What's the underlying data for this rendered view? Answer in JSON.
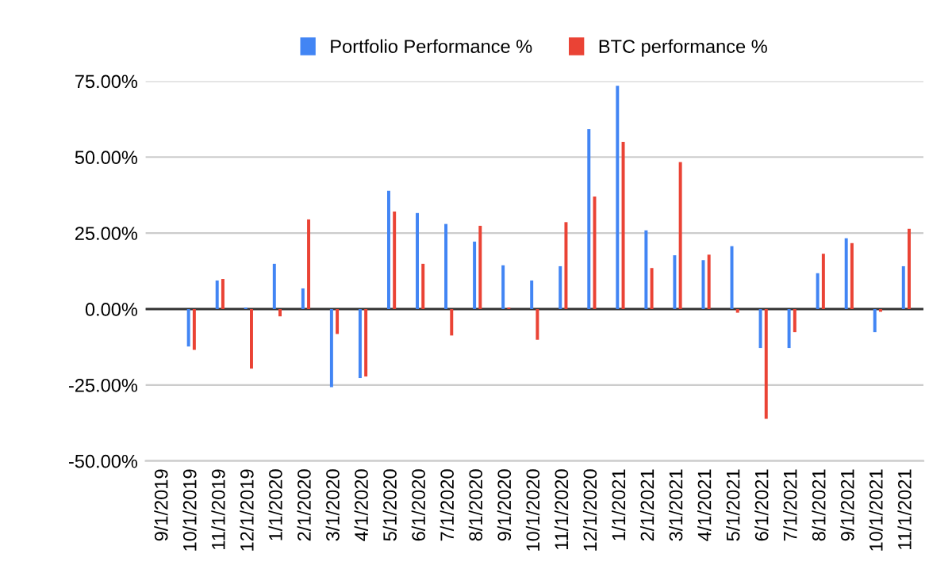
{
  "chart_data": {
    "type": "bar",
    "categories": [
      "9/1/2019",
      "10/1/2019",
      "11/1/2019",
      "12/1/2019",
      "1/1/2020",
      "2/1/2020",
      "3/1/2020",
      "4/1/2020",
      "5/1/2020",
      "6/1/2020",
      "7/1/2020",
      "8/1/2020",
      "9/1/2020",
      "10/1/2020",
      "11/1/2020",
      "12/1/2020",
      "1/1/2021",
      "2/1/2021",
      "3/1/2021",
      "4/1/2021",
      "5/1/2021",
      "6/1/2021",
      "7/1/2021",
      "8/1/2021",
      "9/1/2021",
      "10/1/2021",
      "11/1/2021"
    ],
    "series": [
      {
        "name": "Portfolio Performance %",
        "color": "#4285f4",
        "values": [
          null,
          -12.3,
          9.4,
          0.5,
          14.9,
          6.8,
          -25.7,
          -22.7,
          38.9,
          31.6,
          28.0,
          22.2,
          14.4,
          9.4,
          14.1,
          59.2,
          73.5,
          25.9,
          17.7,
          16.1,
          20.7,
          -12.8,
          -12.8,
          11.8,
          23.3,
          -7.6,
          14.1
        ]
      },
      {
        "name": "BTC performance %",
        "color": "#ea4335",
        "values": [
          null,
          -13.4,
          9.9,
          -19.6,
          -2.4,
          29.5,
          -8.2,
          -22.2,
          32.1,
          14.9,
          -8.7,
          27.4,
          0.5,
          -10.1,
          28.6,
          37.0,
          55.0,
          13.5,
          48.4,
          17.9,
          -1.2,
          -36.1,
          -7.6,
          18.2,
          21.7,
          -0.9,
          26.4
        ]
      }
    ],
    "ylim": [
      -50,
      75
    ],
    "yticks": [
      {
        "value": -50,
        "label": "-50.00%"
      },
      {
        "value": -25,
        "label": "-25.00%"
      },
      {
        "value": 0,
        "label": "0.00%"
      },
      {
        "value": 25,
        "label": "25.00%"
      },
      {
        "value": 50,
        "label": "50.00%"
      },
      {
        "value": 75,
        "label": "75.00%"
      }
    ],
    "grid": "y",
    "legend": "top"
  }
}
